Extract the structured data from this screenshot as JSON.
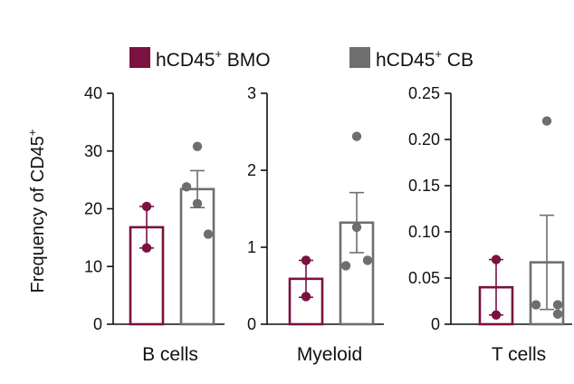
{
  "chart_data": {
    "type": "bar",
    "ylabel": "Frequency of CD45",
    "ylabel_sup": "+",
    "legend": {
      "placement": "top",
      "entries": [
        {
          "label": "hCD45",
          "sup": "+",
          "suffix": " BMO",
          "color": "#7a1140"
        },
        {
          "label": "hCD45",
          "sup": "+",
          "suffix": " CB",
          "color": "#6e6e6e"
        }
      ]
    },
    "panels": [
      {
        "category": "B cells",
        "ylim": [
          0,
          40
        ],
        "ticks": [
          "0",
          "10",
          "20",
          "30",
          "40"
        ],
        "series": [
          {
            "name": "hCD45+ BMO",
            "mean": 16.8,
            "err": 3.6,
            "points": [
              20.4,
              13.2
            ],
            "color": "#7a1140"
          },
          {
            "name": "hCD45+ CB",
            "mean": 23.4,
            "err": 3.2,
            "points": [
              30.8,
              23.8,
              20.9,
              15.6
            ],
            "color": "#6e6e6e"
          }
        ]
      },
      {
        "category": "Myeloid",
        "ylim": [
          0,
          3
        ],
        "ticks": [
          "0",
          "1",
          "2",
          "3"
        ],
        "series": [
          {
            "name": "hCD45+ BMO",
            "mean": 0.59,
            "err": 0.24,
            "points": [
              0.83,
              0.36
            ],
            "color": "#7a1140"
          },
          {
            "name": "hCD45+ CB",
            "mean": 1.32,
            "err": 0.39,
            "points": [
              2.44,
              1.26,
              0.76,
              0.83
            ],
            "color": "#6e6e6e"
          }
        ]
      },
      {
        "category": "T cells",
        "ylim": [
          0,
          0.25
        ],
        "ticks": [
          "0",
          "0.05",
          "0.10",
          "0.15",
          "0.20",
          "0.25"
        ],
        "series": [
          {
            "name": "hCD45+ BMO",
            "mean": 0.04,
            "err": 0.03,
            "points": [
              0.07,
              0.01
            ],
            "color": "#7a1140"
          },
          {
            "name": "hCD45+ CB",
            "mean": 0.067,
            "err": 0.051,
            "points": [
              0.22,
              0.021,
              0.021,
              0.011
            ],
            "color": "#6e6e6e"
          }
        ]
      }
    ]
  }
}
